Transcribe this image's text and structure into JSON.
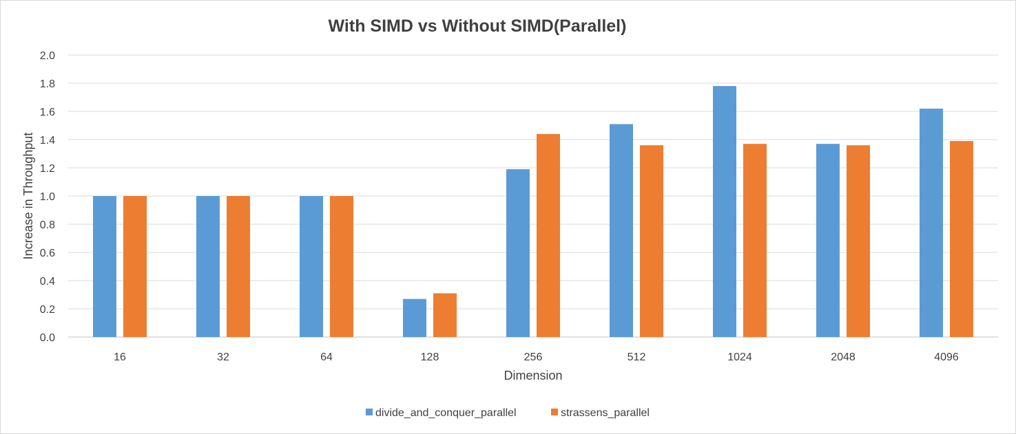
{
  "chart_data": {
    "type": "bar",
    "title": "With SIMD vs Without SIMD(Parallel)",
    "xlabel": "Dimension",
    "ylabel": "Increase in Throughput",
    "categories": [
      "16",
      "32",
      "64",
      "128",
      "256",
      "512",
      "1024",
      "2048",
      "4096"
    ],
    "series": [
      {
        "name": "divide_and_conquer_parallel",
        "color": "#5B9BD5",
        "values": [
          1.0,
          1.0,
          1.0,
          0.27,
          1.19,
          1.51,
          1.78,
          1.37,
          1.62
        ]
      },
      {
        "name": "strassens_parallel",
        "color": "#ED7D31",
        "values": [
          1.0,
          1.0,
          1.0,
          0.31,
          1.44,
          1.36,
          1.37,
          1.36,
          1.39
        ]
      }
    ],
    "ylim": [
      0,
      2.0
    ],
    "yticks": [
      "0.0",
      "0.2",
      "0.4",
      "0.6",
      "0.8",
      "1.0",
      "1.2",
      "1.4",
      "1.6",
      "1.8",
      "2.0"
    ],
    "grid": true,
    "legend_position": "bottom"
  }
}
